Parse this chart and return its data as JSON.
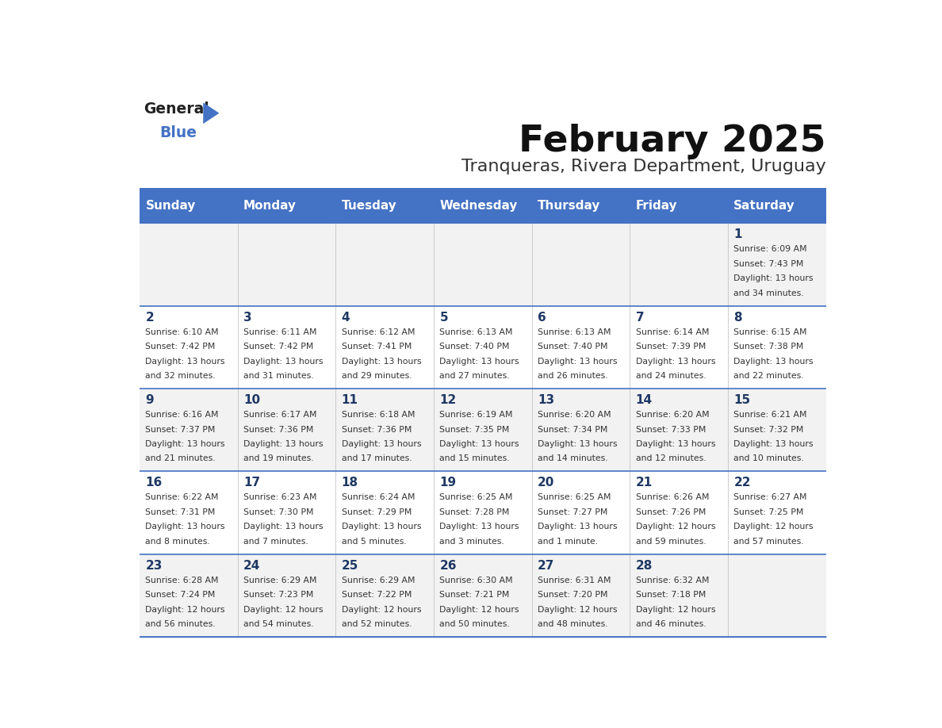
{
  "title": "February 2025",
  "subtitle": "Tranqueras, Rivera Department, Uruguay",
  "header_bg": "#4472C4",
  "header_text_color": "#FFFFFF",
  "day_names": [
    "Sunday",
    "Monday",
    "Tuesday",
    "Wednesday",
    "Thursday",
    "Friday",
    "Saturday"
  ],
  "row_bg_even": "#F2F2F2",
  "row_bg_odd": "#FFFFFF",
  "cell_text_color": "#333333",
  "day_number_color": "#1F3864",
  "grid_color": "#4472C4",
  "logo_text1": "General",
  "logo_text2": "Blue",
  "logo_color1": "#222222",
  "logo_color2": "#4472C4",
  "days_data": [
    {
      "day": 1,
      "col": 6,
      "row": 0,
      "sunrise": "6:09 AM",
      "sunset": "7:43 PM",
      "daylight": "13 hours and 34 minutes."
    },
    {
      "day": 2,
      "col": 0,
      "row": 1,
      "sunrise": "6:10 AM",
      "sunset": "7:42 PM",
      "daylight": "13 hours and 32 minutes."
    },
    {
      "day": 3,
      "col": 1,
      "row": 1,
      "sunrise": "6:11 AM",
      "sunset": "7:42 PM",
      "daylight": "13 hours and 31 minutes."
    },
    {
      "day": 4,
      "col": 2,
      "row": 1,
      "sunrise": "6:12 AM",
      "sunset": "7:41 PM",
      "daylight": "13 hours and 29 minutes."
    },
    {
      "day": 5,
      "col": 3,
      "row": 1,
      "sunrise": "6:13 AM",
      "sunset": "7:40 PM",
      "daylight": "13 hours and 27 minutes."
    },
    {
      "day": 6,
      "col": 4,
      "row": 1,
      "sunrise": "6:13 AM",
      "sunset": "7:40 PM",
      "daylight": "13 hours and 26 minutes."
    },
    {
      "day": 7,
      "col": 5,
      "row": 1,
      "sunrise": "6:14 AM",
      "sunset": "7:39 PM",
      "daylight": "13 hours and 24 minutes."
    },
    {
      "day": 8,
      "col": 6,
      "row": 1,
      "sunrise": "6:15 AM",
      "sunset": "7:38 PM",
      "daylight": "13 hours and 22 minutes."
    },
    {
      "day": 9,
      "col": 0,
      "row": 2,
      "sunrise": "6:16 AM",
      "sunset": "7:37 PM",
      "daylight": "13 hours and 21 minutes."
    },
    {
      "day": 10,
      "col": 1,
      "row": 2,
      "sunrise": "6:17 AM",
      "sunset": "7:36 PM",
      "daylight": "13 hours and 19 minutes."
    },
    {
      "day": 11,
      "col": 2,
      "row": 2,
      "sunrise": "6:18 AM",
      "sunset": "7:36 PM",
      "daylight": "13 hours and 17 minutes."
    },
    {
      "day": 12,
      "col": 3,
      "row": 2,
      "sunrise": "6:19 AM",
      "sunset": "7:35 PM",
      "daylight": "13 hours and 15 minutes."
    },
    {
      "day": 13,
      "col": 4,
      "row": 2,
      "sunrise": "6:20 AM",
      "sunset": "7:34 PM",
      "daylight": "13 hours and 14 minutes."
    },
    {
      "day": 14,
      "col": 5,
      "row": 2,
      "sunrise": "6:20 AM",
      "sunset": "7:33 PM",
      "daylight": "13 hours and 12 minutes."
    },
    {
      "day": 15,
      "col": 6,
      "row": 2,
      "sunrise": "6:21 AM",
      "sunset": "7:32 PM",
      "daylight": "13 hours and 10 minutes."
    },
    {
      "day": 16,
      "col": 0,
      "row": 3,
      "sunrise": "6:22 AM",
      "sunset": "7:31 PM",
      "daylight": "13 hours and 8 minutes."
    },
    {
      "day": 17,
      "col": 1,
      "row": 3,
      "sunrise": "6:23 AM",
      "sunset": "7:30 PM",
      "daylight": "13 hours and 7 minutes."
    },
    {
      "day": 18,
      "col": 2,
      "row": 3,
      "sunrise": "6:24 AM",
      "sunset": "7:29 PM",
      "daylight": "13 hours and 5 minutes."
    },
    {
      "day": 19,
      "col": 3,
      "row": 3,
      "sunrise": "6:25 AM",
      "sunset": "7:28 PM",
      "daylight": "13 hours and 3 minutes."
    },
    {
      "day": 20,
      "col": 4,
      "row": 3,
      "sunrise": "6:25 AM",
      "sunset": "7:27 PM",
      "daylight": "13 hours and 1 minute."
    },
    {
      "day": 21,
      "col": 5,
      "row": 3,
      "sunrise": "6:26 AM",
      "sunset": "7:26 PM",
      "daylight": "12 hours and 59 minutes."
    },
    {
      "day": 22,
      "col": 6,
      "row": 3,
      "sunrise": "6:27 AM",
      "sunset": "7:25 PM",
      "daylight": "12 hours and 57 minutes."
    },
    {
      "day": 23,
      "col": 0,
      "row": 4,
      "sunrise": "6:28 AM",
      "sunset": "7:24 PM",
      "daylight": "12 hours and 56 minutes."
    },
    {
      "day": 24,
      "col": 1,
      "row": 4,
      "sunrise": "6:29 AM",
      "sunset": "7:23 PM",
      "daylight": "12 hours and 54 minutes."
    },
    {
      "day": 25,
      "col": 2,
      "row": 4,
      "sunrise": "6:29 AM",
      "sunset": "7:22 PM",
      "daylight": "12 hours and 52 minutes."
    },
    {
      "day": 26,
      "col": 3,
      "row": 4,
      "sunrise": "6:30 AM",
      "sunset": "7:21 PM",
      "daylight": "12 hours and 50 minutes."
    },
    {
      "day": 27,
      "col": 4,
      "row": 4,
      "sunrise": "6:31 AM",
      "sunset": "7:20 PM",
      "daylight": "12 hours and 48 minutes."
    },
    {
      "day": 28,
      "col": 5,
      "row": 4,
      "sunrise": "6:32 AM",
      "sunset": "7:18 PM",
      "daylight": "12 hours and 46 minutes."
    }
  ]
}
